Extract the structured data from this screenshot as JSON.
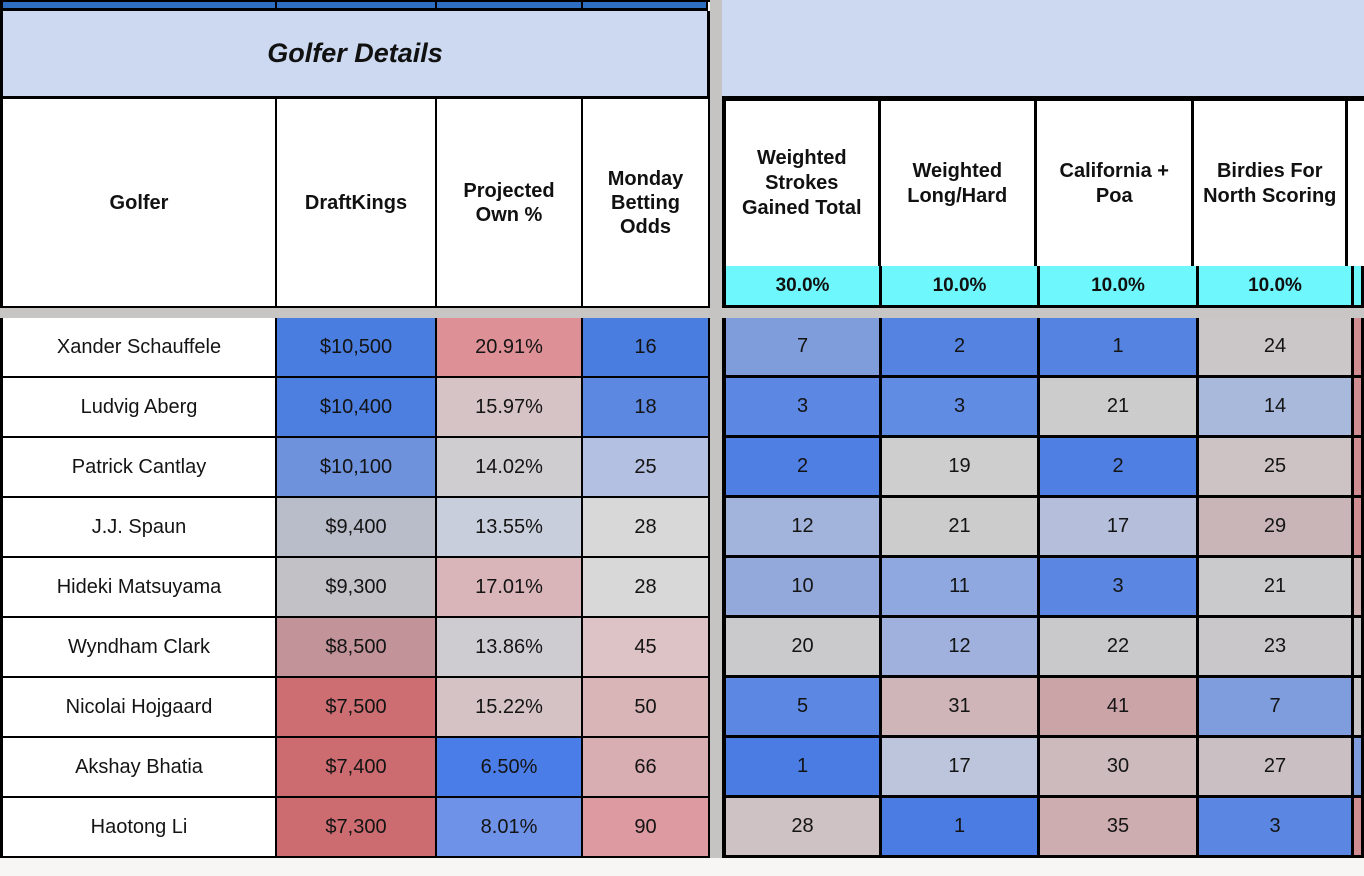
{
  "left_table": {
    "banner": "Golfer Details",
    "columns": [
      "Golfer",
      "DraftKings",
      "Projected Own %",
      "Monday Betting Odds"
    ]
  },
  "right_table": {
    "columns": [
      {
        "label": "Weighted Strokes Gained Total",
        "weight": "30.0%"
      },
      {
        "label": "Weighted Long/Hard",
        "weight": "10.0%"
      },
      {
        "label": "California + Poa",
        "weight": "10.0%"
      },
      {
        "label": "Birdies For North Scoring",
        "weight": "10.0%"
      }
    ]
  },
  "colors": {
    "strip_blue": "#2e6fc2",
    "banner_blue": "#ccd9f1",
    "weights_cyan": "#6ef8fd",
    "gutter_gray": "#c5c4c3",
    "border_black": "#000000",
    "scale_high_blue": "#4a7de0",
    "scale_low_red": "#cd6e72"
  },
  "rows": [
    {
      "name": "Xander Schauffele",
      "dk": {
        "v": "$10,500",
        "c": "#4a7de0"
      },
      "own": {
        "v": "20.91%",
        "c": "#dd9095"
      },
      "odds": {
        "v": "16",
        "c": "#4a7de0"
      },
      "wsg": {
        "v": "7",
        "c": "#7f9cdb"
      },
      "wlh": {
        "v": "2",
        "c": "#5583e2"
      },
      "cal": {
        "v": "1",
        "c": "#5583e2"
      },
      "bfn": {
        "v": "24",
        "c": "#cbc7c8"
      },
      "edge": {
        "c": "#d08e92"
      }
    },
    {
      "name": "Ludvig Aberg",
      "dk": {
        "v": "$10,400",
        "c": "#4c7fe0"
      },
      "own": {
        "v": "15.97%",
        "c": "#d6c3c6"
      },
      "odds": {
        "v": "18",
        "c": "#5d88e2"
      },
      "wsg": {
        "v": "3",
        "c": "#5c87e2"
      },
      "wlh": {
        "v": "3",
        "c": "#618ce4"
      },
      "cal": {
        "v": "21",
        "c": "#cccccc"
      },
      "bfn": {
        "v": "14",
        "c": "#a9b9dc"
      },
      "edge": {
        "c": "#d08e92"
      }
    },
    {
      "name": "Patrick Cantlay",
      "dk": {
        "v": "$10,100",
        "c": "#6f92dc"
      },
      "own": {
        "v": "14.02%",
        "c": "#d0cdd1"
      },
      "odds": {
        "v": "25",
        "c": "#b3c0e2"
      },
      "wsg": {
        "v": "2",
        "c": "#4f7fe2"
      },
      "wlh": {
        "v": "19",
        "c": "#cecece"
      },
      "cal": {
        "v": "2",
        "c": "#4f7fe2"
      },
      "bfn": {
        "v": "25",
        "c": "#cdc2c4"
      },
      "edge": {
        "c": "#d08e92"
      }
    },
    {
      "name": "J.J. Spaun",
      "dk": {
        "v": "$9,400",
        "c": "#b9bdca"
      },
      "own": {
        "v": "13.55%",
        "c": "#c9cedc"
      },
      "odds": {
        "v": "28",
        "c": "#d8d8d8"
      },
      "wsg": {
        "v": "12",
        "c": "#a3b4dc"
      },
      "wlh": {
        "v": "21",
        "c": "#cccccc"
      },
      "cal": {
        "v": "17",
        "c": "#b5bfdc"
      },
      "bfn": {
        "v": "29",
        "c": "#c9b5b8"
      },
      "edge": {
        "c": "#d08e92"
      }
    },
    {
      "name": "Hideki Matsuyama",
      "dk": {
        "v": "$9,300",
        "c": "#c2c2c6"
      },
      "own": {
        "v": "17.01%",
        "c": "#d9b4b9"
      },
      "odds": {
        "v": "28",
        "c": "#d8d8d8"
      },
      "wsg": {
        "v": "10",
        "c": "#93a9dc"
      },
      "wlh": {
        "v": "11",
        "c": "#8fa8e0"
      },
      "cal": {
        "v": "3",
        "c": "#5b86e2"
      },
      "bfn": {
        "v": "21",
        "c": "#cac9cc"
      },
      "edge": {
        "c": "#cfb0b3"
      }
    },
    {
      "name": "Wyndham Clark",
      "dk": {
        "v": "$8,500",
        "c": "#c29499"
      },
      "own": {
        "v": "13.86%",
        "c": "#cfccd1"
      },
      "odds": {
        "v": "45",
        "c": "#ddc3c6"
      },
      "wsg": {
        "v": "20",
        "c": "#cac9cc"
      },
      "wlh": {
        "v": "12",
        "c": "#9fb1dc"
      },
      "cal": {
        "v": "22",
        "c": "#c9c8cb"
      },
      "bfn": {
        "v": "23",
        "c": "#c9c7ca"
      },
      "edge": {
        "c": "#c8c4c5"
      }
    },
    {
      "name": "Nicolai Hojgaard",
      "dk": {
        "v": "$7,500",
        "c": "#cd6e72"
      },
      "own": {
        "v": "15.22%",
        "c": "#d5c2c5"
      },
      "odds": {
        "v": "50",
        "c": "#dab5b8"
      },
      "wsg": {
        "v": "5",
        "c": "#5c87e2"
      },
      "wlh": {
        "v": "31",
        "c": "#cfb5b8"
      },
      "cal": {
        "v": "41",
        "c": "#cba4a8"
      },
      "bfn": {
        "v": "7",
        "c": "#7f9cdc"
      },
      "edge": {
        "c": "#c8c4c5"
      }
    },
    {
      "name": "Akshay Bhatia",
      "dk": {
        "v": "$7,400",
        "c": "#cd6c70"
      },
      "own": {
        "v": "6.50%",
        "c": "#4b7de8"
      },
      "odds": {
        "v": "66",
        "c": "#d9aeb2"
      },
      "wsg": {
        "v": "1",
        "c": "#4a7ce4"
      },
      "wlh": {
        "v": "17",
        "c": "#bdc5dc"
      },
      "cal": {
        "v": "30",
        "c": "#ccbabd"
      },
      "bfn": {
        "v": "27",
        "c": "#cabfc2"
      },
      "edge": {
        "c": "#7f9cdc"
      }
    },
    {
      "name": "Haotong Li",
      "dk": {
        "v": "$7,300",
        "c": "#cd6c70"
      },
      "own": {
        "v": "8.01%",
        "c": "#6e92e8"
      },
      "odds": {
        "v": "90",
        "c": "#dd9aa0"
      },
      "wsg": {
        "v": "28",
        "c": "#cec2c4"
      },
      "wlh": {
        "v": "1",
        "c": "#4a7ce4"
      },
      "cal": {
        "v": "35",
        "c": "#ceadb1"
      },
      "bfn": {
        "v": "3",
        "c": "#5b86e2"
      },
      "edge": {
        "c": "#d08e92"
      }
    }
  ]
}
